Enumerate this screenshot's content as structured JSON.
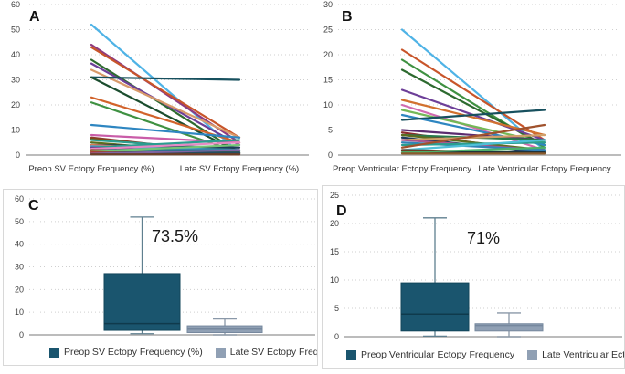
{
  "figure": {
    "background": "#ffffff",
    "accent_dark_teal": "#1a556e",
    "accent_gray_blue": "#90a0b4",
    "grid_color": "#cfcfcf",
    "axis_color": "#a6a6a6"
  },
  "chart_data": [
    {
      "id": "A",
      "label": "A",
      "type": "line",
      "categories": [
        "Preop SV Ectopy Frequency (%)",
        "Late SV Ectopy Frequency (%)"
      ],
      "ylim": [
        0,
        60
      ],
      "yticks": [
        0,
        10,
        20,
        30,
        40,
        50,
        60
      ],
      "grid": "dotted-horizontal",
      "series": [
        {
          "color": "#4fb3e6",
          "values": [
            52,
            1
          ]
        },
        {
          "color": "#8e3a80",
          "values": [
            44,
            5
          ]
        },
        {
          "color": "#c8552a",
          "values": [
            43,
            7
          ]
        },
        {
          "color": "#2d6a2f",
          "values": [
            38,
            1
          ]
        },
        {
          "color": "#6d3f98",
          "values": [
            36.5,
            4
          ]
        },
        {
          "color": "#d89a6a",
          "values": [
            34,
            7
          ]
        },
        {
          "color": "#17505e",
          "values": [
            31,
            30
          ]
        },
        {
          "color": "#1b4d2e",
          "values": [
            31,
            1
          ]
        },
        {
          "color": "#d2622a",
          "values": [
            23,
            5
          ]
        },
        {
          "color": "#3f9142",
          "values": [
            21,
            1
          ]
        },
        {
          "color": "#2e86c1",
          "values": [
            12,
            7
          ]
        },
        {
          "color": "#c95ca8",
          "values": [
            8,
            5
          ]
        },
        {
          "color": "#8b3a2e",
          "values": [
            7,
            0.5
          ]
        },
        {
          "color": "#7d4b12",
          "values": [
            6.5,
            1
          ]
        },
        {
          "color": "#2a9d8f",
          "values": [
            6,
            2
          ]
        },
        {
          "color": "#5d6d1e",
          "values": [
            5,
            0.5
          ]
        },
        {
          "color": "#1f3b5c",
          "values": [
            4,
            3
          ]
        },
        {
          "color": "#e07b54",
          "values": [
            4,
            1
          ]
        },
        {
          "color": "#49a0d1",
          "values": [
            3.5,
            2
          ]
        },
        {
          "color": "#2a9d8f",
          "values": [
            3,
            6
          ]
        },
        {
          "color": "#713f8e",
          "values": [
            3,
            0.5
          ]
        },
        {
          "color": "#e78ac3",
          "values": [
            2.5,
            5
          ]
        },
        {
          "color": "#31708e",
          "values": [
            2,
            2
          ]
        },
        {
          "color": "#a0522d",
          "values": [
            2,
            0.5
          ]
        },
        {
          "color": "#74c476",
          "values": [
            1.5,
            4
          ]
        },
        {
          "color": "#17505e",
          "values": [
            1,
            1
          ]
        },
        {
          "color": "#c0392b",
          "values": [
            1,
            0.3
          ]
        },
        {
          "color": "#34495e",
          "values": [
            0.5,
            0.5
          ]
        },
        {
          "color": "#8064a2",
          "values": [
            0.5,
            2
          ]
        },
        {
          "color": "#6b3e26",
          "values": [
            0.3,
            0.3
          ]
        }
      ]
    },
    {
      "id": "B",
      "label": "B",
      "type": "line",
      "categories": [
        "Preop Ventricular Ectopy Frequency",
        "Late Ventricular Ectopy Frequency"
      ],
      "ylim": [
        0,
        30
      ],
      "yticks": [
        0,
        5,
        10,
        15,
        20,
        25,
        30
      ],
      "grid": "dotted-horizontal",
      "series": [
        {
          "color": "#4fb3e6",
          "values": [
            25,
            1
          ]
        },
        {
          "color": "#c8552a",
          "values": [
            21,
            3
          ]
        },
        {
          "color": "#3f9142",
          "values": [
            19,
            1.5
          ]
        },
        {
          "color": "#2d6a2f",
          "values": [
            17,
            2
          ]
        },
        {
          "color": "#6d3f98",
          "values": [
            13,
            3
          ]
        },
        {
          "color": "#d2712f",
          "values": [
            11,
            4
          ]
        },
        {
          "color": "#d06bb0",
          "values": [
            10,
            1
          ]
        },
        {
          "color": "#74b857",
          "values": [
            9,
            2.5
          ]
        },
        {
          "color": "#2e86c1",
          "values": [
            8,
            2
          ]
        },
        {
          "color": "#17505e",
          "values": [
            7,
            9
          ]
        },
        {
          "color": "#5b2c6f",
          "values": [
            5,
            3
          ]
        },
        {
          "color": "#8b2e2e",
          "values": [
            4.5,
            0.5
          ]
        },
        {
          "color": "#2a7a4b",
          "values": [
            4,
            3
          ]
        },
        {
          "color": "#5d6d1e",
          "values": [
            4,
            1
          ]
        },
        {
          "color": "#1f3b5c",
          "values": [
            3.5,
            0.5
          ]
        },
        {
          "color": "#d1a06a",
          "values": [
            3,
            4
          ]
        },
        {
          "color": "#a8578d",
          "values": [
            3,
            1
          ]
        },
        {
          "color": "#3282b8",
          "values": [
            2.5,
            1
          ]
        },
        {
          "color": "#2a9d8f",
          "values": [
            2,
            2.5
          ]
        },
        {
          "color": "#a0522d",
          "values": [
            1.5,
            6
          ]
        },
        {
          "color": "#4fc0d8",
          "values": [
            1,
            3
          ]
        },
        {
          "color": "#6b3e26",
          "values": [
            1,
            0.5
          ]
        },
        {
          "color": "#17323e",
          "values": [
            0.5,
            0.5
          ]
        },
        {
          "color": "#4daf6a",
          "values": [
            0.5,
            1.5
          ]
        },
        {
          "color": "#8b5a2b",
          "values": [
            0.3,
            0.3
          ]
        }
      ]
    },
    {
      "id": "C",
      "label": "C",
      "type": "box",
      "ylim": [
        0,
        60
      ],
      "yticks": [
        0,
        10,
        20,
        30,
        40,
        50,
        60
      ],
      "annotation": "73.5%",
      "boxes": [
        {
          "name": "Preop SV Ectopy Frequency (%)",
          "fill": "#1a556e",
          "border": "#12455a",
          "median_color": "#0f3a4c",
          "whisker": "#5f7f8f",
          "min": 0.5,
          "q1": 2,
          "median": 5,
          "q3": 27,
          "max": 52
        },
        {
          "name": "Late SV Ectopy Frequency (%)",
          "fill": "#90a0b4",
          "border": "#76889e",
          "median_color": "#76889e",
          "whisker": "#8a98a8",
          "min": 0,
          "q1": 1,
          "median": 2.5,
          "q3": 4,
          "max": 7
        }
      ],
      "legend": [
        "Preop SV Ectopy Frequency (%)",
        "Late SV Ectopy Frequency (%)"
      ]
    },
    {
      "id": "D",
      "label": "D",
      "type": "box",
      "ylim": [
        0,
        25
      ],
      "yticks": [
        0,
        5,
        10,
        15,
        20,
        25
      ],
      "annotation": "71%",
      "boxes": [
        {
          "name": "Preop Ventricular Ectopy Frequency",
          "fill": "#1a556e",
          "border": "#12455a",
          "median_color": "#0f3a4c",
          "whisker": "#5f7f8f",
          "min": 0.1,
          "q1": 1,
          "median": 4,
          "q3": 9.5,
          "max": 21
        },
        {
          "name": "Late Ventricular Ectopy Frequency",
          "fill": "#90a0b4",
          "border": "#76889e",
          "median_color": "#76889e",
          "whisker": "#8a98a8",
          "min": 0,
          "q1": 1,
          "median": 2,
          "q3": 2.3,
          "max": 4.2
        }
      ],
      "legend": [
        "Preop Ventricular Ectopy Frequency",
        "Late Ventricular Ectopy Frequency"
      ]
    }
  ]
}
